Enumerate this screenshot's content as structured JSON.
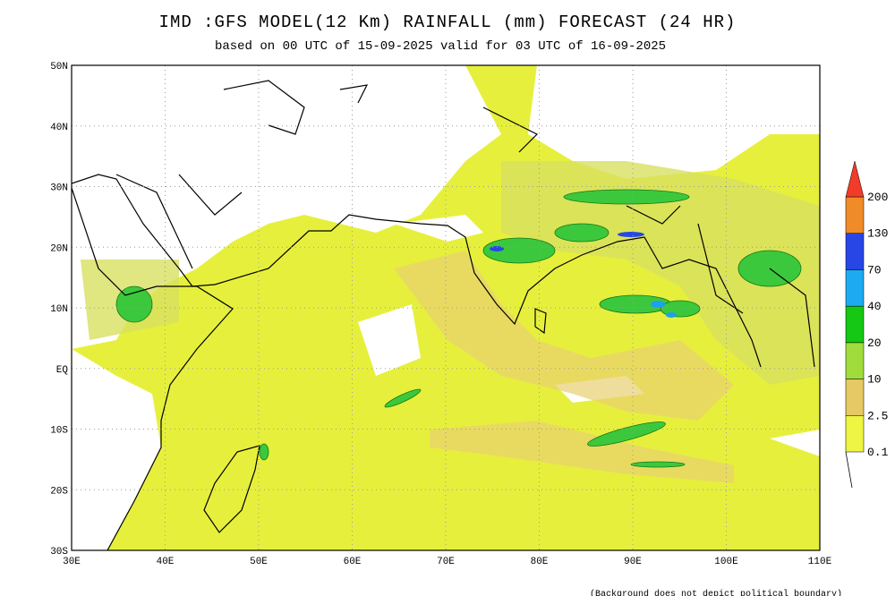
{
  "header": {
    "title": "IMD :GFS MODEL(12 Km) RAINFALL (mm) FORECAST (24 HR)",
    "subtitle": "based on 00 UTC of 15-09-2025 valid for 03 UTC of 16-09-2025"
  },
  "map": {
    "lat_labels": [
      "50N",
      "40N",
      "30N",
      "20N",
      "10N",
      "EQ",
      "10S",
      "20S",
      "30S"
    ],
    "lon_labels": [
      "30E",
      "40E",
      "50E",
      "60E",
      "70E",
      "80E",
      "90E",
      "100E",
      "110E"
    ]
  },
  "legend": {
    "levels": [
      "0.1",
      "2.5",
      "10",
      "20",
      "40",
      "70",
      "130",
      "200"
    ]
  },
  "footnote": "(Background does not depict political boundary)"
}
